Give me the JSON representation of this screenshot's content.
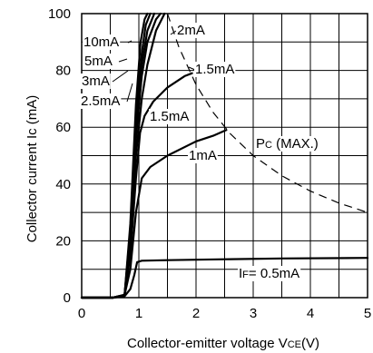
{
  "chart_data": {
    "type": "line",
    "title": "",
    "xlabel": "Collector-emitter voltage V CE(V)",
    "xlabel_parts": {
      "main": "Collector-emitter voltage V",
      "sub": "CE",
      "tail": "(V)"
    },
    "ylabel": "Collector current Ic (mA)",
    "xlim": [
      0,
      5
    ],
    "ylim": [
      0,
      100
    ],
    "xticks": [
      0,
      1,
      2,
      3,
      4,
      5
    ],
    "yticks": [
      0,
      20,
      40,
      60,
      80,
      100
    ],
    "grid": true,
    "series": [
      {
        "name": "IF= 0.5mA",
        "x": [
          0,
          0.55,
          0.75,
          0.85,
          0.92,
          0.97,
          1.05,
          1.5,
          2.5,
          3.5,
          5.0
        ],
        "y": [
          0,
          0,
          0.5,
          3,
          8,
          12.5,
          13,
          13.2,
          13.5,
          13.8,
          14
        ]
      },
      {
        "name": "1mA",
        "x": [
          0,
          0.55,
          0.75,
          0.85,
          0.95,
          1.05,
          1.2,
          1.5,
          2.0,
          2.3,
          2.53
        ],
        "y": [
          0,
          0,
          1,
          10,
          30,
          42,
          46,
          50,
          55,
          57,
          59
        ]
      },
      {
        "name": "1.5mA",
        "x": [
          0,
          0.55,
          0.75,
          0.85,
          0.95,
          1.02,
          1.1,
          1.25,
          1.5,
          1.8,
          1.93
        ],
        "y": [
          0,
          0,
          1,
          15,
          42,
          58,
          64,
          69,
          74,
          78,
          79
        ]
      },
      {
        "name": "2mA",
        "x": [
          0,
          0.55,
          0.75,
          0.85,
          0.95,
          1.05,
          1.15,
          1.3,
          1.45
        ],
        "y": [
          0,
          0,
          1,
          18,
          50,
          70,
          82,
          94,
          100
        ]
      },
      {
        "name": "2.5mA",
        "x": [
          0,
          0.55,
          0.75,
          0.85,
          0.95,
          1.05,
          1.15,
          1.3,
          1.38
        ],
        "y": [
          0,
          0,
          1,
          20,
          56,
          78,
          90,
          98,
          100
        ]
      },
      {
        "name": "3mA",
        "x": [
          0,
          0.55,
          0.75,
          0.85,
          0.95,
          1.05,
          1.15,
          1.27
        ],
        "y": [
          0,
          0,
          1,
          22,
          60,
          82,
          94,
          100
        ]
      },
      {
        "name": "5mA",
        "x": [
          0,
          0.55,
          0.75,
          0.85,
          0.95,
          1.05,
          1.12,
          1.2
        ],
        "y": [
          0,
          0,
          1,
          24,
          64,
          86,
          96,
          100
        ]
      },
      {
        "name": "10mA",
        "x": [
          0,
          0.55,
          0.75,
          0.85,
          0.95,
          1.03,
          1.1,
          1.15
        ],
        "y": [
          0,
          0,
          1,
          26,
          68,
          90,
          98,
          100
        ]
      }
    ],
    "pc_max": {
      "name": "Pc (MAX.)",
      "name_parts": {
        "main": "P",
        "sub": "C",
        "tail": " (MAX.)"
      },
      "x": [
        1.5,
        1.7,
        2.0,
        2.3,
        2.6,
        3.0,
        3.5,
        4.0,
        4.5,
        5.0
      ],
      "y": [
        100,
        88.2,
        75,
        65.2,
        57.7,
        50,
        42.9,
        37.5,
        33.3,
        30
      ]
    },
    "annotations": [
      {
        "text": "10mA"
      },
      {
        "text": "5mA"
      },
      {
        "text": "3mA"
      },
      {
        "text": "2.5mA"
      },
      {
        "text": "2mA"
      },
      {
        "text": "1.5mA"
      },
      {
        "text": "1.5mA"
      },
      {
        "text": "1mA"
      },
      {
        "text": "Pc (MAX.)"
      },
      {
        "text": "IF= 0.5mA"
      }
    ],
    "if_label_parts": {
      "main": "I",
      "sub": "F",
      "tail": "= 0.5mA"
    }
  }
}
